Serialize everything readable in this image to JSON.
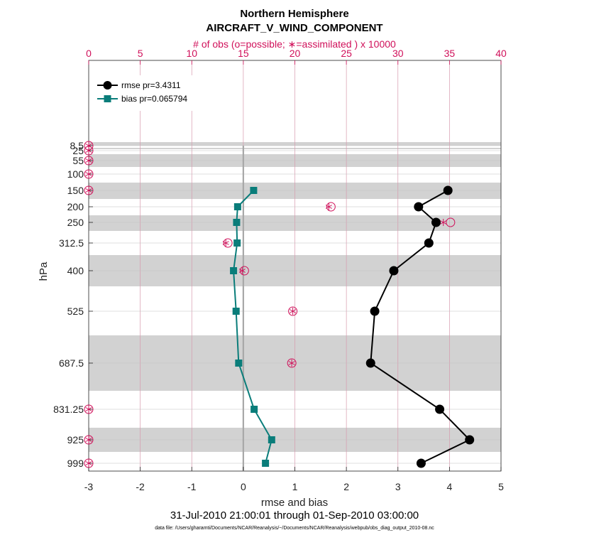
{
  "chart_data": {
    "type": "line",
    "title": "Northern Hemisphere",
    "subtitle": "AIRCRAFT_V_WIND_COMPONENT",
    "top_axis_label": "# of obs (o=possible; ∗=assimilated ) x 10000",
    "xlabel": "rmse and bias",
    "ylabel": "hPa",
    "date_range": "31-Jul-2010 21:00:01 through 01-Sep-2010 03:00:00",
    "data_file": "data file: /Users/gharamti/Documents/NCAR/Reanalysis/~/Documents/NCAR/Reanalysis/webpub/obs_diag_output_2010-08.nc",
    "xlim": [
      -3,
      5
    ],
    "xticks": [
      "-3",
      "-2",
      "-1",
      "0",
      "1",
      "2",
      "3",
      "4",
      "5"
    ],
    "top_xlim": [
      0,
      40
    ],
    "top_xticks": [
      "0",
      "5",
      "10",
      "15",
      "20",
      "25",
      "30",
      "35",
      "40"
    ],
    "levels": [
      8.5,
      25,
      55,
      100,
      150,
      200,
      250,
      312.5,
      400,
      525,
      687.5,
      831.25,
      925,
      999
    ],
    "level_labels": [
      "8.5",
      "25",
      "55",
      "100",
      "150",
      "200",
      "250",
      "312.5",
      "400",
      "525",
      "687.5",
      "831.25",
      "925",
      "999"
    ],
    "legend_position": "top-left",
    "series": [
      {
        "name": "rmse pr=3.4311",
        "color": "#000000",
        "marker": "circle",
        "levels": [
          150,
          200,
          250,
          312.5,
          400,
          525,
          687.5,
          831.25,
          925,
          999
        ],
        "values": [
          3.97,
          3.4,
          3.74,
          3.6,
          2.92,
          2.55,
          2.47,
          3.81,
          4.39,
          3.45
        ]
      },
      {
        "name": "bias pr=0.065794",
        "color": "#0a7d7a",
        "marker": "square",
        "levels": [
          150,
          200,
          250,
          312.5,
          400,
          525,
          687.5,
          831.25,
          925,
          999
        ],
        "values": [
          0.2,
          -0.11,
          -0.13,
          -0.12,
          -0.19,
          -0.14,
          -0.09,
          0.21,
          0.55,
          0.43
        ]
      }
    ],
    "obs_counts": {
      "unit": "x 10000",
      "levels": [
        8.5,
        25,
        55,
        100,
        150,
        200,
        250,
        312.5,
        400,
        525,
        687.5,
        831.25,
        925,
        999
      ],
      "possible": [
        0,
        0,
        0,
        0,
        0,
        23.5,
        35.1,
        13.5,
        15.1,
        19.8,
        19.7,
        0,
        0,
        0
      ],
      "assimilated": [
        0,
        0,
        0,
        0,
        0,
        23.3,
        34.4,
        13.3,
        14.9,
        19.8,
        19.7,
        0,
        0,
        0
      ]
    }
  }
}
